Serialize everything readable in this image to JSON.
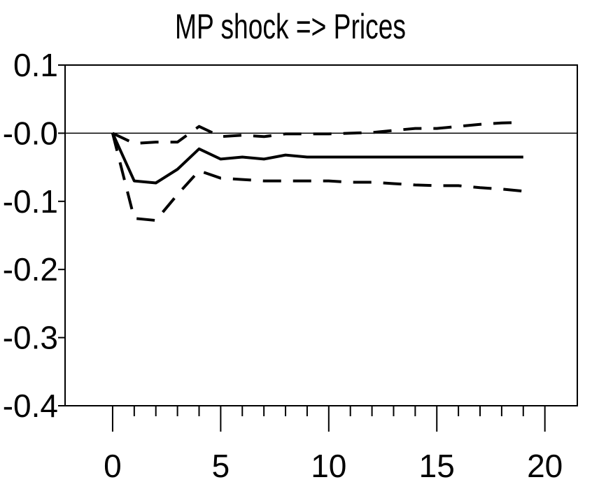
{
  "chart_data": {
    "type": "line",
    "title": "MP shock => Prices",
    "xlabel": "",
    "ylabel": "",
    "xlim": [
      -2.2,
      21.5
    ],
    "ylim": [
      -0.4,
      0.1
    ],
    "x_ticks": [
      0,
      5,
      10,
      15,
      20
    ],
    "x_tick_labels": [
      "0",
      "5",
      "10",
      "15",
      "20"
    ],
    "x_minor_ticks": [
      1,
      2,
      3,
      4,
      6,
      7,
      8,
      9,
      11,
      12,
      13,
      14,
      16,
      17,
      18,
      19
    ],
    "y_ticks": [
      0.1,
      0.0,
      -0.1,
      -0.2,
      -0.3,
      -0.4
    ],
    "y_tick_labels": [
      "0.1",
      "-0.0",
      "-0.1",
      "-0.2",
      "-0.3",
      "-0.4"
    ],
    "zero_line": 0,
    "grid": false,
    "legend": "none",
    "x": [
      0,
      1,
      2,
      3,
      4,
      5,
      6,
      7,
      8,
      9,
      10,
      11,
      12,
      13,
      14,
      15,
      16,
      17,
      18,
      19
    ],
    "series": [
      {
        "style": "solid",
        "values": [
          0.0,
          -0.07,
          -0.073,
          -0.053,
          -0.023,
          -0.038,
          -0.035,
          -0.038,
          -0.032,
          -0.035,
          -0.035,
          -0.035,
          -0.035,
          -0.035,
          -0.035,
          -0.035,
          -0.035,
          -0.035,
          -0.035,
          -0.035
        ]
      },
      {
        "style": "dashed",
        "values": [
          0.0,
          -0.015,
          -0.013,
          -0.013,
          0.01,
          -0.005,
          -0.003,
          -0.005,
          -0.001,
          -0.001,
          -0.001,
          0.0,
          0.001,
          0.004,
          0.007,
          0.007,
          0.01,
          0.013,
          0.015,
          0.016
        ]
      },
      {
        "style": "dashed",
        "values": [
          0.0,
          -0.125,
          -0.128,
          -0.09,
          -0.055,
          -0.066,
          -0.068,
          -0.07,
          -0.07,
          -0.07,
          -0.07,
          -0.072,
          -0.072,
          -0.074,
          -0.076,
          -0.077,
          -0.077,
          -0.08,
          -0.082,
          -0.085
        ]
      }
    ],
    "colors": {
      "line": "#000000",
      "axis": "#000000",
      "background": "#ffffff"
    }
  }
}
